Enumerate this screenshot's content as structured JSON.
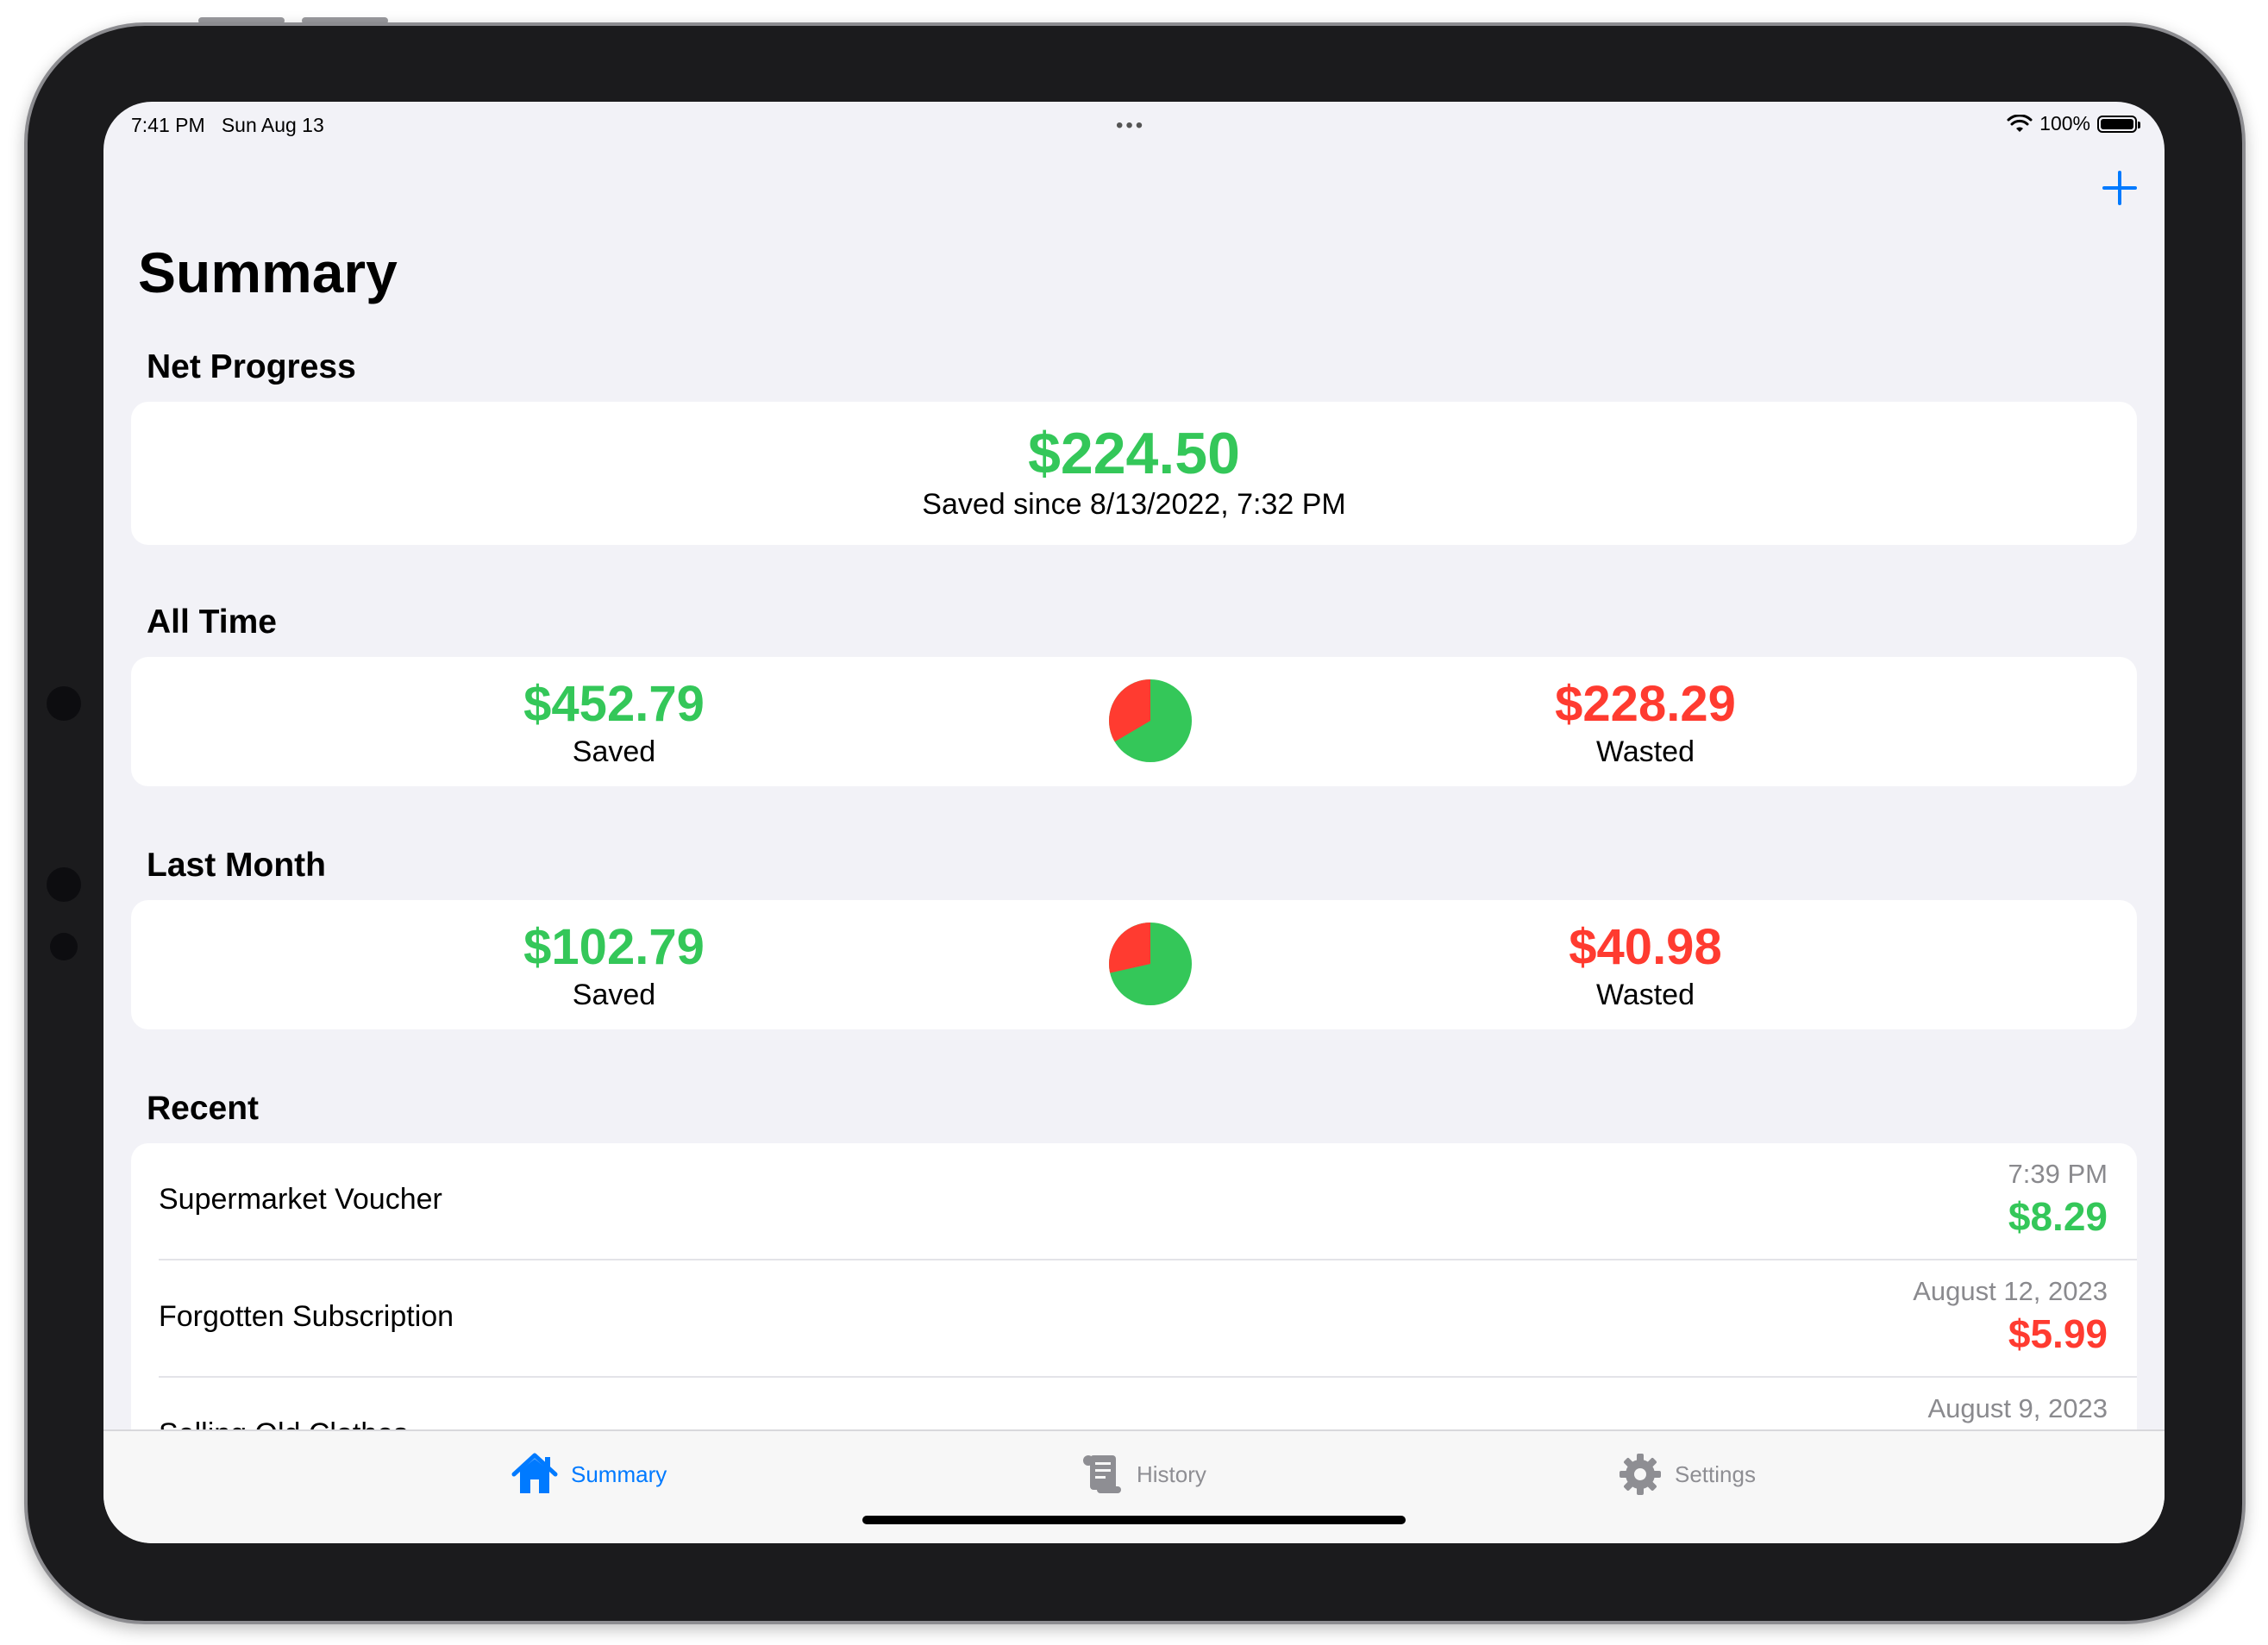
{
  "status_bar": {
    "time": "7:41 PM",
    "date": "Sun Aug 13",
    "multitask": "•••",
    "battery": "100%"
  },
  "nav": {
    "add_icon": "plus-icon"
  },
  "page_title": "Summary",
  "net_progress": {
    "header": "Net Progress",
    "amount": "$224.50",
    "subtitle": "Saved since 8/13/2022, 7:32 PM"
  },
  "all_time": {
    "header": "All Time",
    "saved_amount": "$452.79",
    "saved_label": "Saved",
    "wasted_amount": "$228.29",
    "wasted_label": "Wasted",
    "pie_wasted_fraction": 0.335
  },
  "last_month": {
    "header": "Last Month",
    "saved_amount": "$102.79",
    "saved_label": "Saved",
    "wasted_amount": "$40.98",
    "wasted_label": "Wasted",
    "pie_wasted_fraction": 0.285
  },
  "recent": {
    "header": "Recent",
    "items": [
      {
        "name": "Supermarket Voucher",
        "date": "7:39 PM",
        "amount": "$8.29",
        "type": "saved"
      },
      {
        "name": "Forgotten Subscription",
        "date": "August 12, 2023",
        "amount": "$5.99",
        "type": "wasted"
      },
      {
        "name": "Selling Old Clothes",
        "date": "August 9, 2023",
        "amount": "",
        "type": "saved"
      }
    ]
  },
  "tabs": [
    {
      "label": "Summary",
      "icon": "house-icon",
      "active": true
    },
    {
      "label": "History",
      "icon": "scroll-icon",
      "active": false
    },
    {
      "label": "Settings",
      "icon": "gear-icon",
      "active": false
    }
  ],
  "colors": {
    "saved": "#34c759",
    "wasted": "#ff3b30",
    "accent": "#007aff",
    "background": "#f2f2f7"
  }
}
